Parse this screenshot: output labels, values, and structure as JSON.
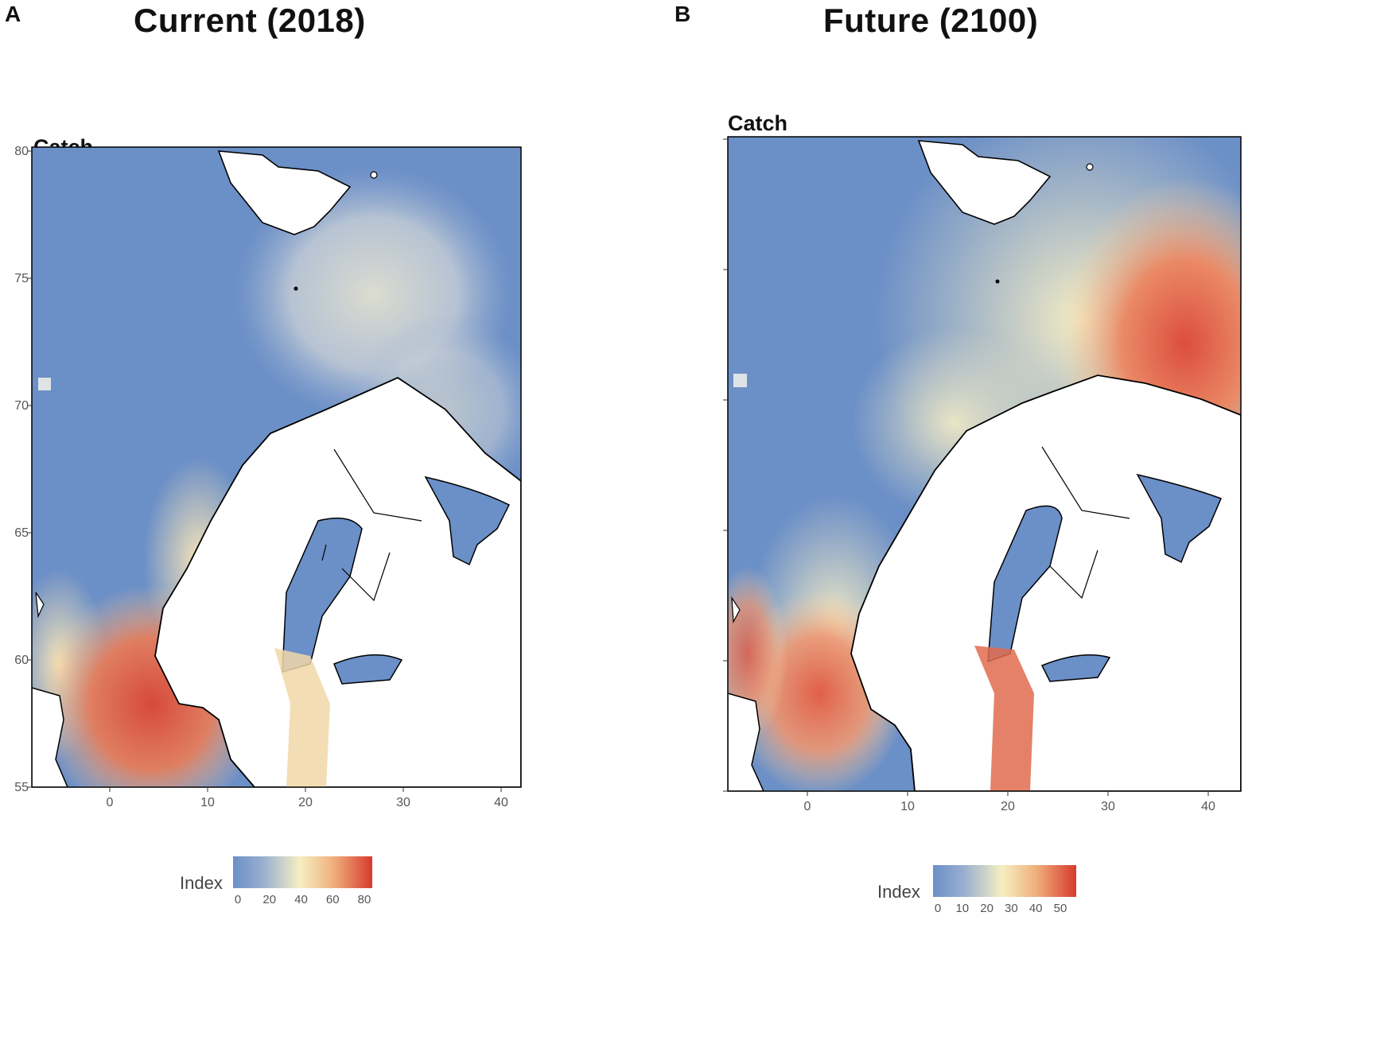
{
  "panels": [
    {
      "letter": "A",
      "title": "Current (2018)",
      "map_title": "Catch",
      "x_ticks": [
        "0",
        "10",
        "20",
        "30",
        "40"
      ],
      "y_ticks": [
        "55",
        "60",
        "65",
        "70",
        "75",
        "80"
      ],
      "legend": {
        "title": "Index",
        "ticks": [
          "0",
          "20",
          "40",
          "60",
          "80"
        ]
      }
    },
    {
      "letter": "B",
      "title": "Future (2100)",
      "map_title": "Catch",
      "x_ticks": [
        "0",
        "10",
        "20",
        "30",
        "40"
      ],
      "y_ticks": [],
      "legend": {
        "title": "Index",
        "ticks": [
          "0",
          "10",
          "20",
          "30",
          "40",
          "50"
        ]
      }
    }
  ],
  "colors": {
    "low": "#6b8fc7",
    "mid": "#f5efc2",
    "high": "#d73a2e",
    "land": "#ffffff",
    "coast": "#000000"
  }
}
